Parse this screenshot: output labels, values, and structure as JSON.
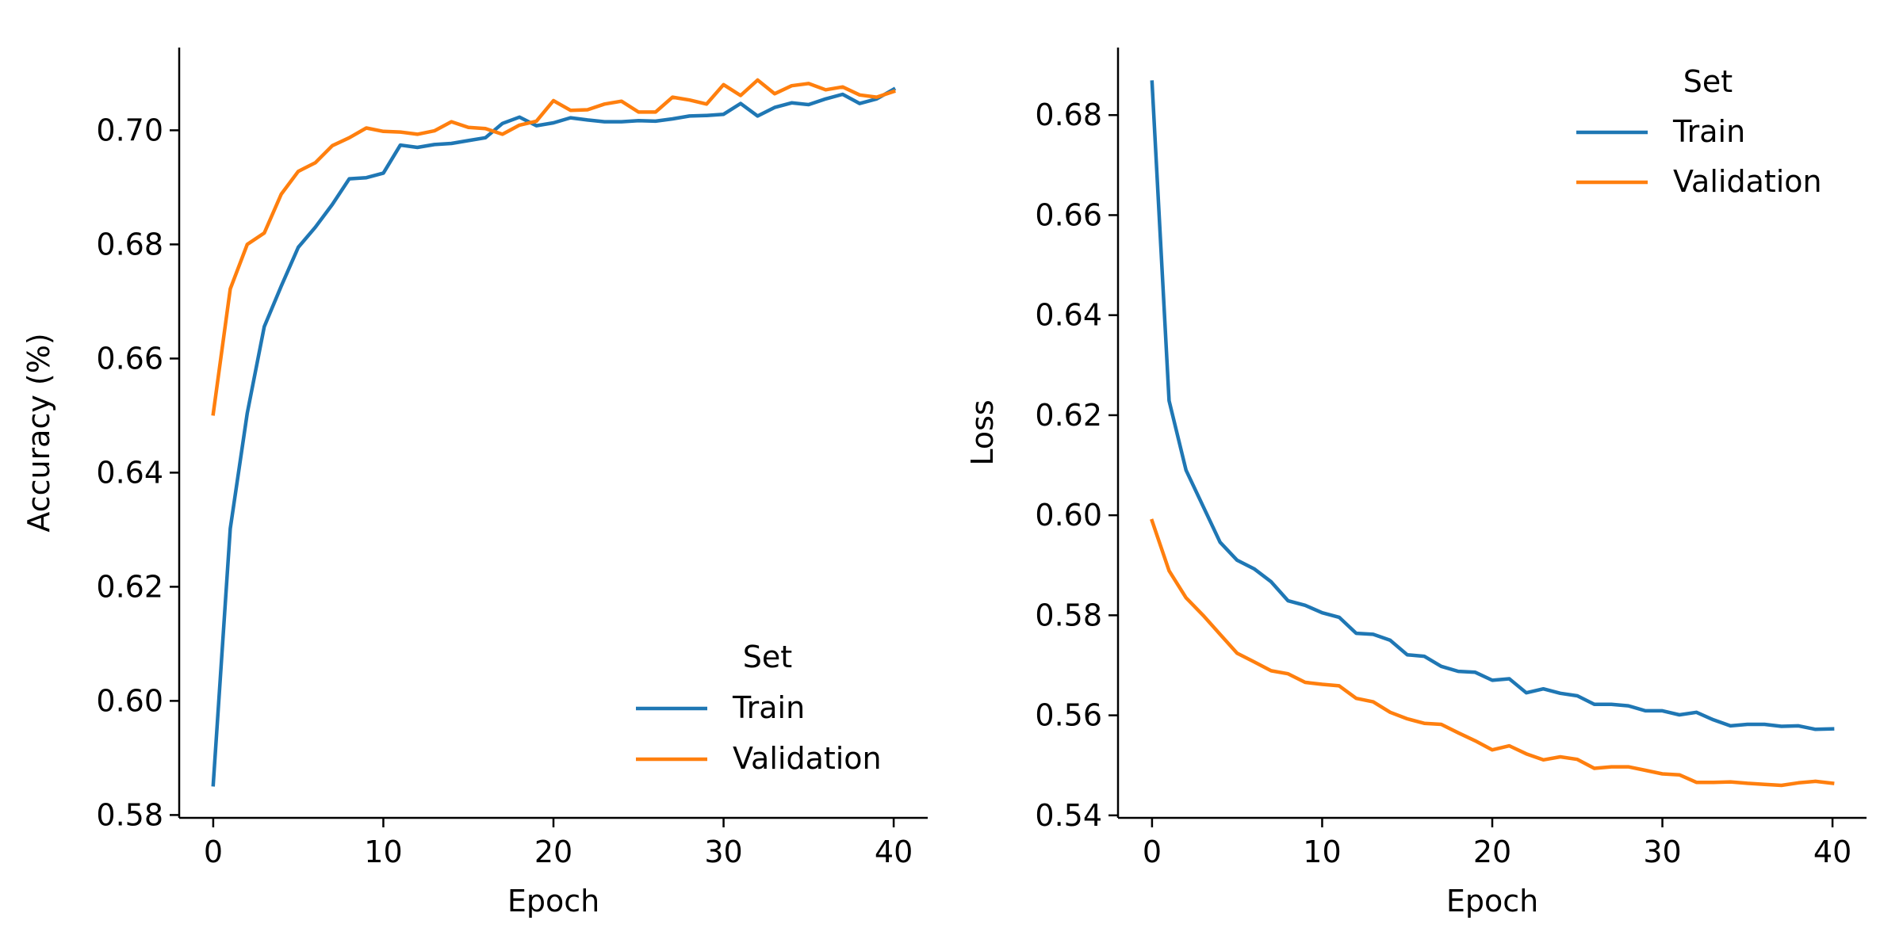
{
  "colors": {
    "train": "#1f77b4",
    "validation": "#ff7f0e",
    "axis": "#000000",
    "background": "#ffffff"
  },
  "chart_data": [
    {
      "type": "line",
      "title": "",
      "xlabel": "Epoch",
      "ylabel": "Accuracy (%)",
      "xlim": [
        -2,
        42
      ],
      "ylim": [
        0.5795,
        0.7145
      ],
      "xticks": [
        0,
        10,
        20,
        30,
        40
      ],
      "xtick_labels": [
        "0",
        "10",
        "20",
        "30",
        "40"
      ],
      "yticks": [
        0.58,
        0.6,
        0.62,
        0.64,
        0.66,
        0.68,
        0.7
      ],
      "ytick_labels": [
        "0.58",
        "0.60",
        "0.62",
        "0.64",
        "0.66",
        "0.68",
        "0.70"
      ],
      "grid": false,
      "legend": {
        "title": "Set",
        "placement": "lower-right",
        "entries": [
          "Train",
          "Validation"
        ]
      },
      "x": [
        0,
        1,
        2,
        3,
        4,
        5,
        6,
        7,
        8,
        9,
        10,
        11,
        12,
        13,
        14,
        15,
        16,
        17,
        18,
        19,
        20,
        21,
        22,
        23,
        24,
        25,
        26,
        27,
        28,
        29,
        30,
        31,
        32,
        33,
        34,
        35,
        36,
        37,
        38,
        39,
        40
      ],
      "series": [
        {
          "name": "Train",
          "color": "#1f77b4",
          "values": [
            0.5853,
            0.6302,
            0.6504,
            0.6656,
            0.6727,
            0.6795,
            0.683,
            0.687,
            0.6915,
            0.6917,
            0.6925,
            0.6974,
            0.697,
            0.6975,
            0.6977,
            0.6982,
            0.6987,
            0.7012,
            0.7023,
            0.7008,
            0.7013,
            0.7022,
            0.7018,
            0.7015,
            0.7015,
            0.7017,
            0.7016,
            0.702,
            0.7025,
            0.7026,
            0.7028,
            0.7047,
            0.7025,
            0.704,
            0.7048,
            0.7045,
            0.7055,
            0.7063,
            0.7047,
            0.7055,
            0.7072
          ]
        },
        {
          "name": "Validation",
          "color": "#ff7f0e",
          "values": [
            0.6503,
            0.6722,
            0.68,
            0.682,
            0.6888,
            0.6928,
            0.6943,
            0.6973,
            0.6987,
            0.7004,
            0.6998,
            0.6997,
            0.6993,
            0.6999,
            0.7015,
            0.7005,
            0.7003,
            0.6993,
            0.7009,
            0.7016,
            0.7052,
            0.7035,
            0.7036,
            0.7046,
            0.7051,
            0.7032,
            0.7032,
            0.7058,
            0.7053,
            0.7046,
            0.708,
            0.7061,
            0.7088,
            0.7064,
            0.7078,
            0.7082,
            0.7071,
            0.7076,
            0.7062,
            0.7058,
            0.7068
          ]
        }
      ]
    },
    {
      "type": "line",
      "title": "",
      "xlabel": "Epoch",
      "ylabel": "Loss",
      "xlim": [
        -2,
        42
      ],
      "ylim": [
        0.5395,
        0.6935
      ],
      "xticks": [
        0,
        10,
        20,
        30,
        40
      ],
      "xtick_labels": [
        "0",
        "10",
        "20",
        "30",
        "40"
      ],
      "yticks": [
        0.54,
        0.56,
        0.58,
        0.6,
        0.62,
        0.64,
        0.66,
        0.68
      ],
      "ytick_labels": [
        "0.54",
        "0.56",
        "0.58",
        "0.60",
        "0.62",
        "0.64",
        "0.66",
        "0.68"
      ],
      "grid": false,
      "legend": {
        "title": "Set",
        "placement": "upper-right",
        "entries": [
          "Train",
          "Validation"
        ]
      },
      "x": [
        0,
        1,
        2,
        3,
        4,
        5,
        6,
        7,
        8,
        9,
        10,
        11,
        12,
        13,
        14,
        15,
        16,
        17,
        18,
        19,
        20,
        21,
        22,
        23,
        24,
        25,
        26,
        27,
        28,
        29,
        30,
        31,
        32,
        33,
        34,
        35,
        36,
        37,
        38,
        39,
        40
      ],
      "series": [
        {
          "name": "Train",
          "color": "#1f77b4",
          "values": [
            0.6866,
            0.6229,
            0.609,
            0.6018,
            0.5946,
            0.591,
            0.5893,
            0.5867,
            0.5829,
            0.582,
            0.5805,
            0.5796,
            0.5764,
            0.5762,
            0.575,
            0.5721,
            0.5718,
            0.5698,
            0.5688,
            0.5686,
            0.567,
            0.5673,
            0.5645,
            0.5653,
            0.5644,
            0.5639,
            0.5622,
            0.5622,
            0.5619,
            0.5609,
            0.5609,
            0.5601,
            0.5606,
            0.5591,
            0.5579,
            0.5582,
            0.5582,
            0.5578,
            0.5579,
            0.5572,
            0.5573
          ]
        },
        {
          "name": "Validation",
          "color": "#ff7f0e",
          "values": [
            0.5989,
            0.5889,
            0.5835,
            0.58,
            0.5762,
            0.5724,
            0.5707,
            0.5689,
            0.5683,
            0.5666,
            0.5662,
            0.5659,
            0.5634,
            0.5627,
            0.5606,
            0.5593,
            0.5584,
            0.5582,
            0.5565,
            0.5549,
            0.5531,
            0.5539,
            0.5523,
            0.5511,
            0.5517,
            0.5512,
            0.5494,
            0.5497,
            0.5497,
            0.549,
            0.5483,
            0.5481,
            0.5466,
            0.5466,
            0.5467,
            0.5464,
            0.5462,
            0.546,
            0.5465,
            0.5468,
            0.5464
          ]
        }
      ]
    }
  ]
}
